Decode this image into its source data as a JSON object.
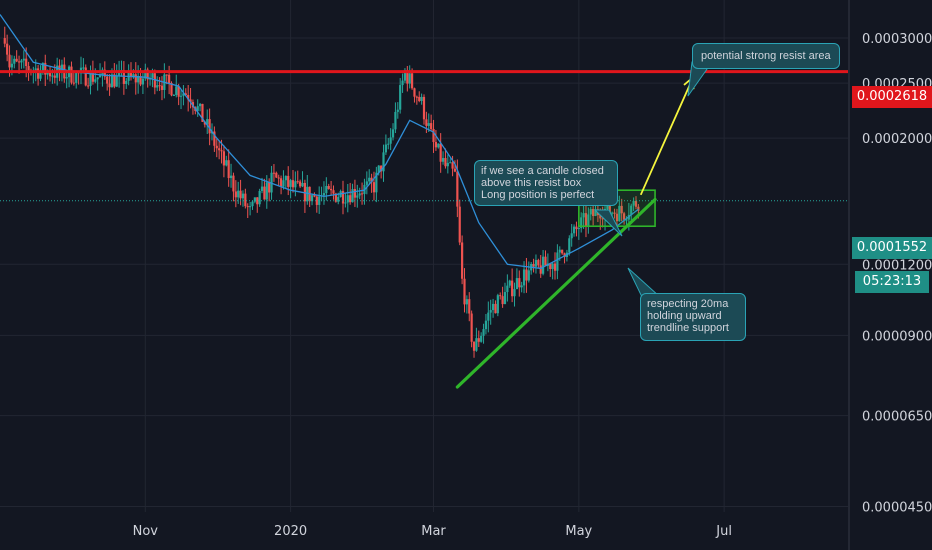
{
  "chart_data": {
    "type": "candlestick",
    "x_ticks": [
      "Nov",
      "2020",
      "Mar",
      "May",
      "Jul"
    ],
    "y_ticks": [
      "0.0003000",
      "0.0002500",
      "0.0002000",
      "0.0001200",
      "0.0000900",
      "0.0000650",
      "0.0000450"
    ],
    "y_scale": "log",
    "ylim": [
      4.4e-05,
      0.00035
    ],
    "resistance_level": 0.0002618,
    "current_price": 0.0001552,
    "countdown": "05:23:13",
    "colors": {
      "background": "#131722",
      "bull": "#26a69a",
      "bear": "#ef5350",
      "ma": "#2f8fd8",
      "resistance": "#e0161c",
      "trendline": "#2fb52a",
      "arrow": "#f5f53d",
      "price_tag": "#1f8f86"
    },
    "ma20": [
      [
        "2019-09-01",
        0.00033
      ],
      [
        "2019-09-15",
        0.000272
      ],
      [
        "2019-10-01",
        0.000262
      ],
      [
        "2019-10-15",
        0.000258
      ],
      [
        "2019-11-01",
        0.000256
      ],
      [
        "2019-11-15",
        0.000247
      ],
      [
        "2019-12-01",
        0.0002
      ],
      [
        "2019-12-15",
        0.000172
      ],
      [
        "2020-01-01",
        0.000162
      ],
      [
        "2020-01-15",
        0.000158
      ],
      [
        "2020-02-01",
        0.000162
      ],
      [
        "2020-02-10",
        0.00018
      ],
      [
        "2020-02-20",
        0.000215
      ],
      [
        "2020-03-01",
        0.000205
      ],
      [
        "2020-03-10",
        0.00018
      ],
      [
        "2020-03-20",
        0.000142
      ],
      [
        "2020-04-01",
        0.00012
      ],
      [
        "2020-04-15",
        0.000118
      ],
      [
        "2020-05-01",
        0.000128
      ],
      [
        "2020-05-15",
        0.000138
      ],
      [
        "2020-05-26",
        0.00015
      ]
    ],
    "trendline": [
      [
        "2020-03-11",
        7.3e-05
      ],
      [
        "2020-06-02",
        0.000156
      ]
    ],
    "resist_box": {
      "from": "2020-05-01",
      "to": "2020-06-02",
      "low": 0.00014,
      "high": 0.000162
    },
    "arrow": [
      [
        "2020-05-27",
        0.000159
      ],
      [
        "2020-06-18",
        0.000256
      ]
    ],
    "annotations": {
      "resist_area": "potential strong resist area",
      "candle_note": [
        "if we see a candle closed",
        "above this resist box",
        "Long position is perfect"
      ],
      "support_note": [
        "respecting 20ma",
        "holding upward",
        "trendline support"
      ]
    }
  }
}
